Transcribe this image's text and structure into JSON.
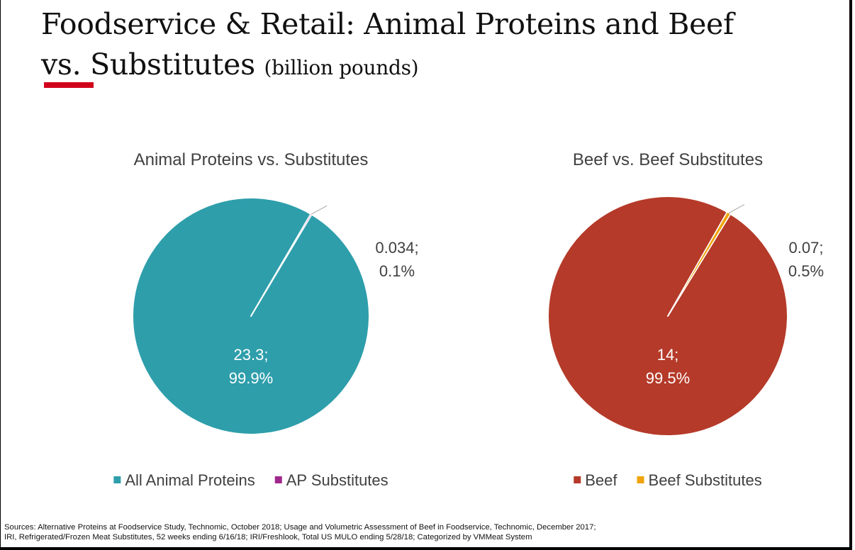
{
  "slide": {
    "title_line1": "Foodservice & Retail: Animal Proteins and Beef",
    "title_vs": "vs.",
    "title_line2_rest": " Substitutes ",
    "title_unit": "(billion pounds)",
    "accent_color": "#d0021b",
    "sources_line1": "Sources:  Alternative Proteins at Foodservice Study, Technomic, October 2018; Usage and Volumetric Assessment of Beef in Foodservice, Technomic, December 2017;",
    "sources_line2": "IRI, Refrigerated/Frozen Meat Substitutes, 52 weeks ending 6/16/18; IRI/Freshlook, Total US MULO ending 5/28/18; Categorized by VMMeat System"
  },
  "chart_data": [
    {
      "type": "pie",
      "title": "Animal Proteins vs. Substitutes",
      "legend_position": "bottom",
      "slices": [
        {
          "name": "All Animal Proteins",
          "value": 23.3,
          "percent": 99.9,
          "label_line1": "23.3;",
          "label_line2": "99.9%",
          "color": "#2e9eab"
        },
        {
          "name": "AP Substitutes",
          "value": 0.034,
          "percent": 0.1,
          "label_line1": "0.034;",
          "label_line2": "0.1%",
          "color": "#a0288c"
        }
      ]
    },
    {
      "type": "pie",
      "title": "Beef vs. Beef Substitutes",
      "legend_position": "bottom",
      "slices": [
        {
          "name": "Beef",
          "value": 14,
          "percent": 99.5,
          "label_line1": "14;",
          "label_line2": "99.5%",
          "color": "#b53a29"
        },
        {
          "name": "Beef Substitutes",
          "value": 0.07,
          "percent": 0.5,
          "label_line1": "0.07;",
          "label_line2": "0.5%",
          "color": "#f0a30a"
        }
      ]
    }
  ]
}
